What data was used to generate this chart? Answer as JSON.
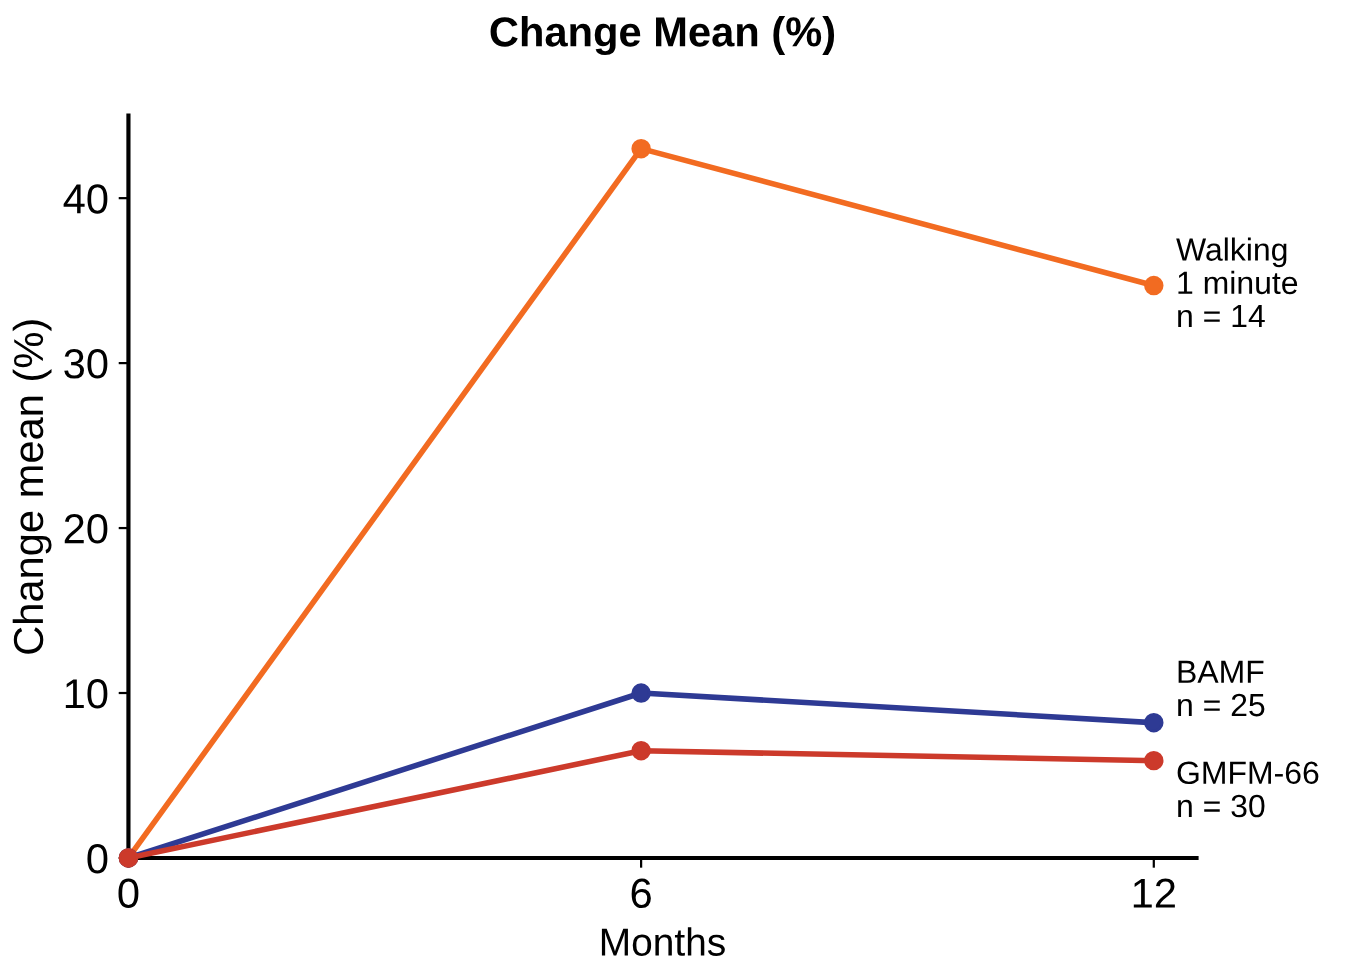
{
  "chart_data": {
    "type": "line",
    "title": "Change Mean (%)",
    "xlabel": "Months",
    "ylabel": "Change mean (%)",
    "x": [
      0,
      6,
      12
    ],
    "xlim": [
      0,
      12.5
    ],
    "xticks": [
      0,
      6,
      12
    ],
    "ylim": [
      0,
      45
    ],
    "yticks": [
      0,
      10,
      20,
      30,
      40
    ],
    "grid": false,
    "legend": false,
    "marker": "circle",
    "line_style": "solid",
    "series": [
      {
        "name": "Walking\n1 minute\nn = 14",
        "color": "#f26b21",
        "values": [
          0,
          43.0,
          34.7
        ]
      },
      {
        "name": "BAMF\nn = 25",
        "color": "#2e3a94",
        "values": [
          0,
          10.0,
          8.2
        ]
      },
      {
        "name": "GMFM-66\nn = 30",
        "color": "#cc3a2b",
        "values": [
          0,
          6.5,
          5.9
        ]
      }
    ]
  }
}
